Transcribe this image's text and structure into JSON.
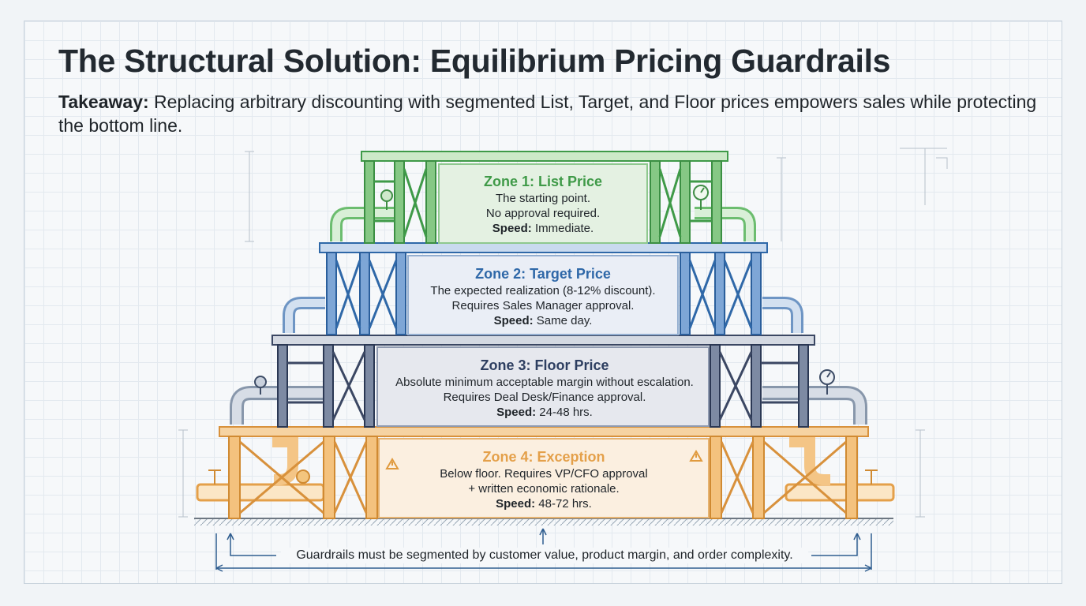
{
  "header": {
    "title": "The Structural Solution: Equilibrium Pricing Guardrails",
    "takeaway_label": "Takeaway:",
    "takeaway_text": " Replacing arbitrary discounting with segmented List, Target, and Floor prices empowers sales while protecting the bottom line."
  },
  "zones": [
    {
      "title": "Zone 1: List Price",
      "line1": "The starting point.",
      "line2": "No approval required.",
      "speed_label": "Speed:",
      "speed_value": " Immediate.",
      "color": "#3f9a48"
    },
    {
      "title": "Zone 2: Target Price",
      "line1": "The expected realization (8-12% discount).",
      "line2": "Requires Sales Manager approval.",
      "speed_label": "Speed:",
      "speed_value": " Same day.",
      "color": "#2f68a8"
    },
    {
      "title": "Zone 3: Floor Price",
      "line1": "Absolute minimum acceptable margin without escalation.",
      "line2": "Requires Deal Desk/Finance approval.",
      "speed_label": "Speed:",
      "speed_value": " 24-48 hrs.",
      "color": "#2d3e60"
    },
    {
      "title": "Zone 4: Exception",
      "line1": "Below floor. Requires VP/CFO approval",
      "line2": "+ written economic rationale.",
      "speed_label": "Speed:",
      "speed_value": " 48-72 hrs.",
      "color": "#e4a04a"
    }
  ],
  "footnote": "Guardrails must be segmented by customer value, product margin, and order complexity.",
  "icons": [
    "valve-icon",
    "pressure-gauge-icon",
    "warning-icon",
    "pipe-elbow-icon"
  ]
}
